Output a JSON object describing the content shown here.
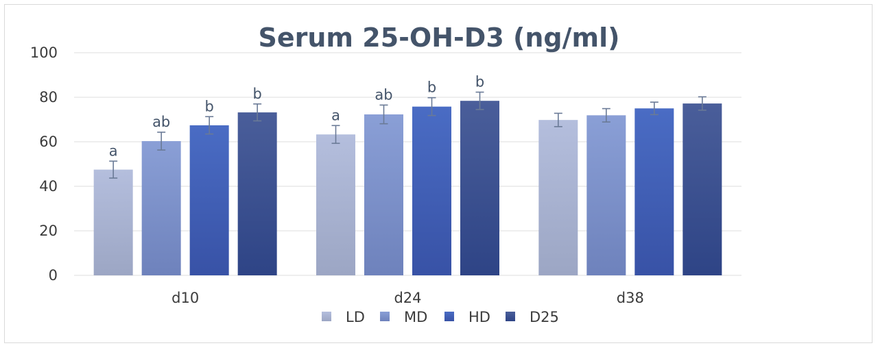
{
  "chart_data": {
    "type": "bar",
    "title": "Serum 25-OH-D3 (ng/ml)",
    "categories": [
      "d10",
      "d24",
      "d38"
    ],
    "ylim": [
      0,
      100
    ],
    "yticks": [
      0,
      20,
      40,
      60,
      80,
      100
    ],
    "grid": true,
    "legend_position": "bottom",
    "series": [
      {
        "name": "LD",
        "values": [
          47.5,
          63.3,
          69.8
        ],
        "errors": [
          3.8,
          4.0,
          3.0
        ],
        "labels": [
          "a",
          "a",
          ""
        ],
        "color": "#b4bedd",
        "color_dark": "#9ca6c4"
      },
      {
        "name": "MD",
        "values": [
          60.3,
          72.3,
          71.9
        ],
        "errors": [
          4.0,
          4.2,
          3.0
        ],
        "labels": [
          "ab",
          "ab",
          ""
        ],
        "color": "#8a9fd6",
        "color_dark": "#6e82bc"
      },
      {
        "name": "HD",
        "values": [
          67.4,
          75.8,
          75.0
        ],
        "errors": [
          3.9,
          4.0,
          2.8
        ],
        "labels": [
          "b",
          "b",
          ""
        ],
        "color": "#4a6cc4",
        "color_dark": "#3852a6"
      },
      {
        "name": "D25",
        "values": [
          73.2,
          78.4,
          77.2
        ],
        "errors": [
          3.8,
          3.9,
          3.0
        ],
        "labels": [
          "b",
          "b",
          ""
        ],
        "color": "#4a5e9a",
        "color_dark": "#2e4486"
      }
    ]
  }
}
